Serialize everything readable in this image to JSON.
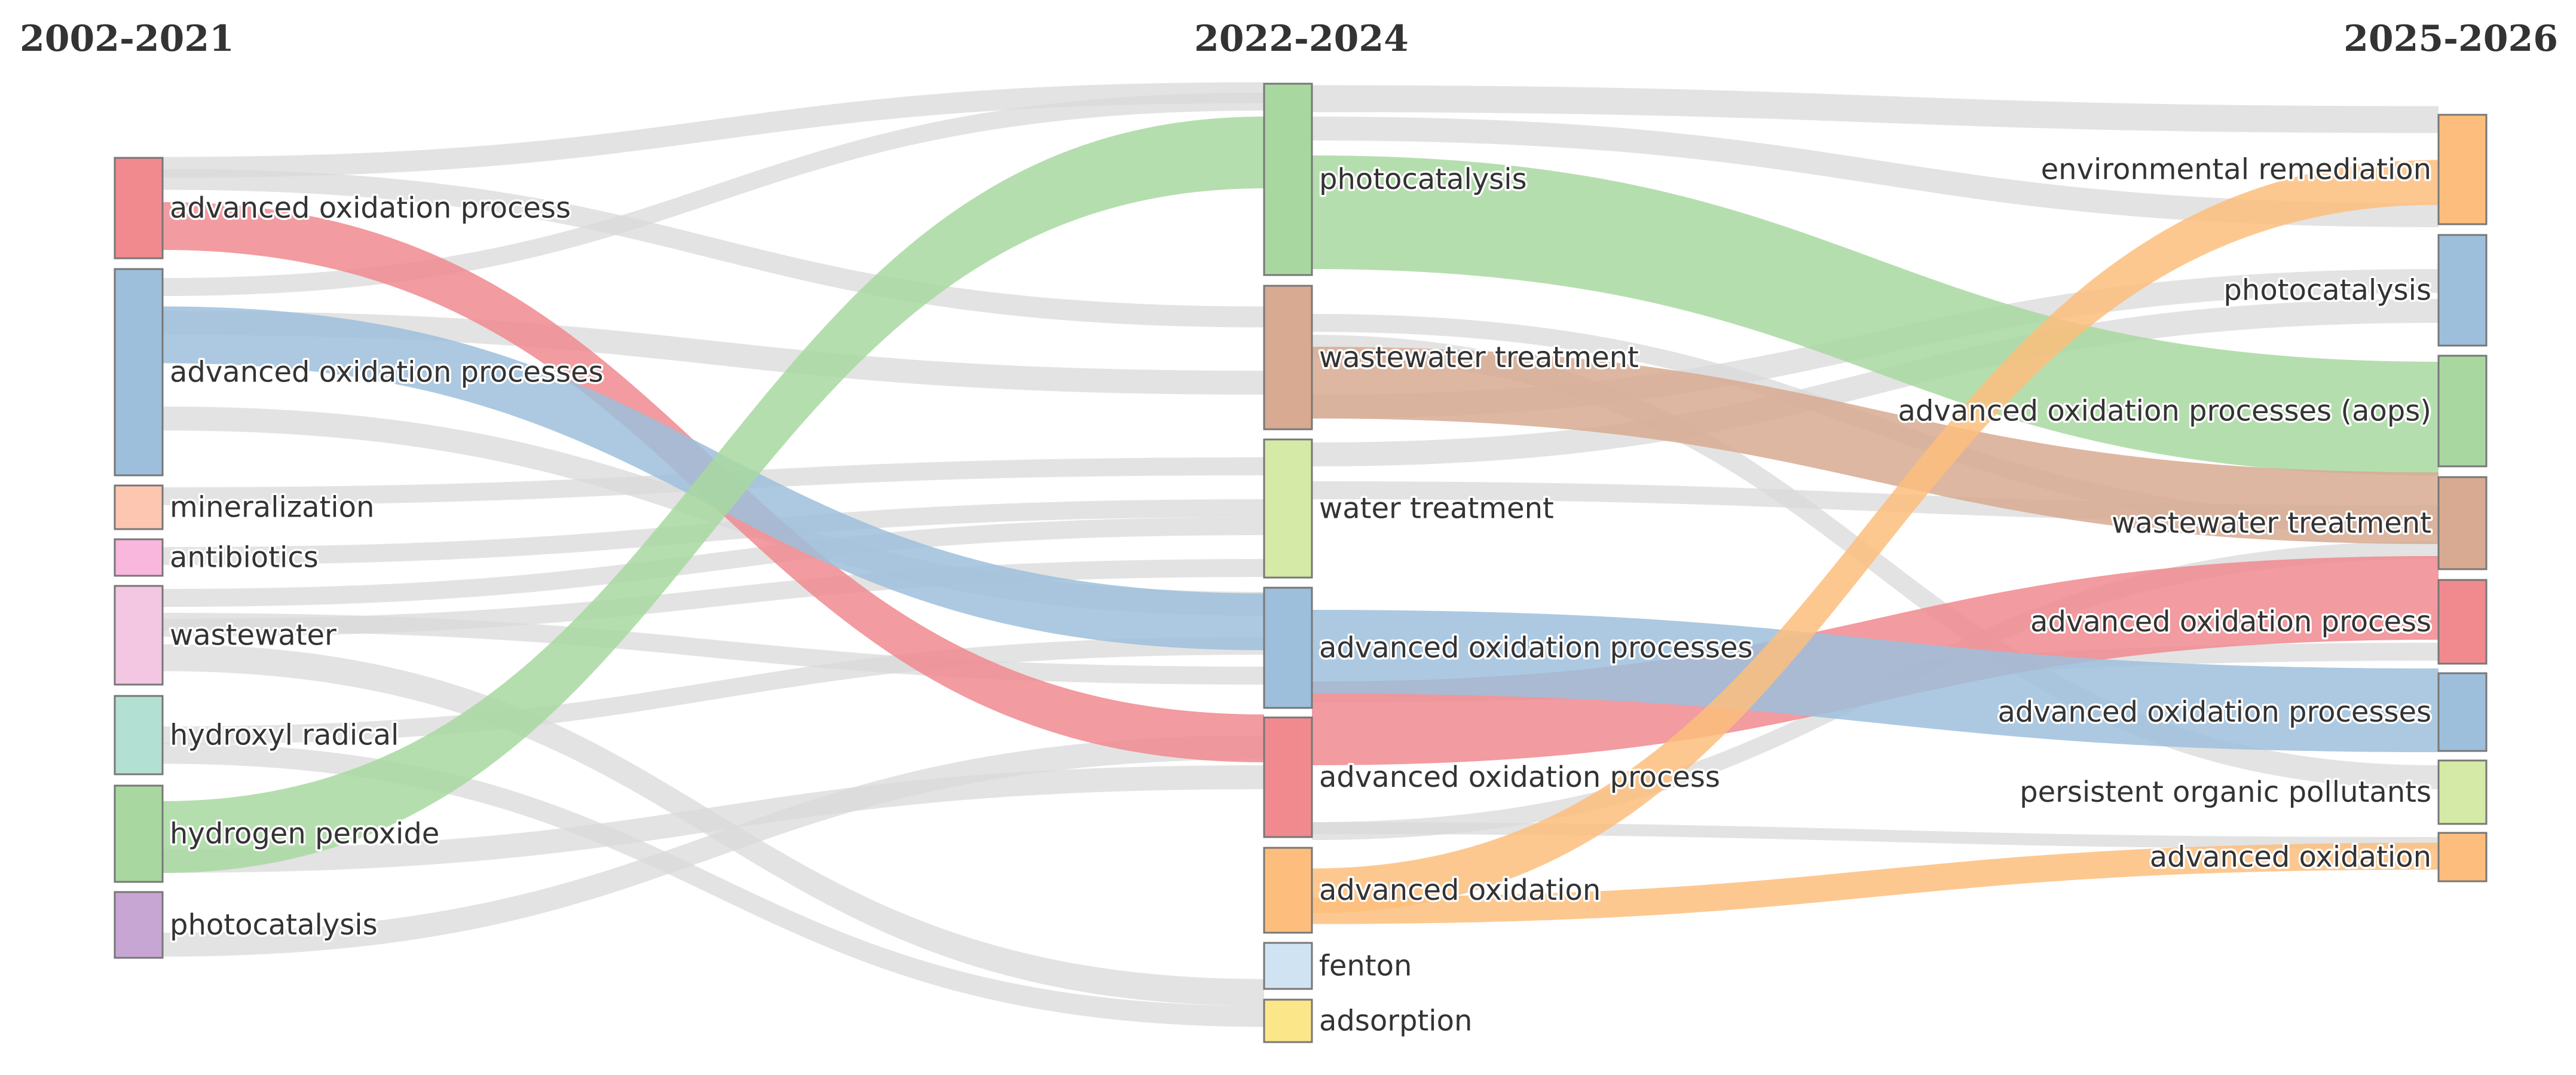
{
  "periods": [
    "2002-2021",
    "2022-2024",
    "2025-2026"
  ],
  "columns": [
    [
      {
        "label": "advanced oxidation process",
        "color": "#f08a8f"
      },
      {
        "label": "advanced oxidation processes",
        "color": "#9dbfdc"
      },
      {
        "label": "mineralization",
        "color": "#fcc6b0"
      },
      {
        "label": "antibiotics",
        "color": "#f9b7dd"
      },
      {
        "label": "wastewater",
        "color": "#f3c7e2"
      },
      {
        "label": "hydroxyl radical",
        "color": "#b2e0d2"
      },
      {
        "label": "hydrogen peroxide",
        "color": "#a8d8a0"
      },
      {
        "label": "photocatalysis",
        "color": "#c8a6d4"
      }
    ],
    [
      {
        "label": "photocatalysis",
        "color": "#a8d8a0"
      },
      {
        "label": "wastewater treatment",
        "color": "#d7aa91"
      },
      {
        "label": "water treatment",
        "color": "#d4eaa6"
      },
      {
        "label": "advanced oxidation processes",
        "color": "#9dbfdc"
      },
      {
        "label": "advanced oxidation process",
        "color": "#f08a8f"
      },
      {
        "label": "advanced oxidation",
        "color": "#fdbe7d"
      },
      {
        "label": "fenton",
        "color": "#cfe3f2"
      },
      {
        "label": "adsorption",
        "color": "#fbe68a"
      }
    ],
    [
      {
        "label": "environmental remediation",
        "color": "#fdbe7d"
      },
      {
        "label": "photocatalysis",
        "color": "#9dbfdc"
      },
      {
        "label": "advanced oxidation processes (aops)",
        "color": "#a8d8a0"
      },
      {
        "label": "wastewater treatment",
        "color": "#d7aa91"
      },
      {
        "label": "advanced oxidation process",
        "color": "#f08a8f"
      },
      {
        "label": "advanced oxidation processes",
        "color": "#9dbfdc"
      },
      {
        "label": "persistent organic pollutants",
        "color": "#d4eaa6"
      },
      {
        "label": "advanced oxidation",
        "color": "#fdbe7d"
      }
    ]
  ],
  "links_gray_color": "#d9d9d9",
  "highlight_opacity": 0.85
}
